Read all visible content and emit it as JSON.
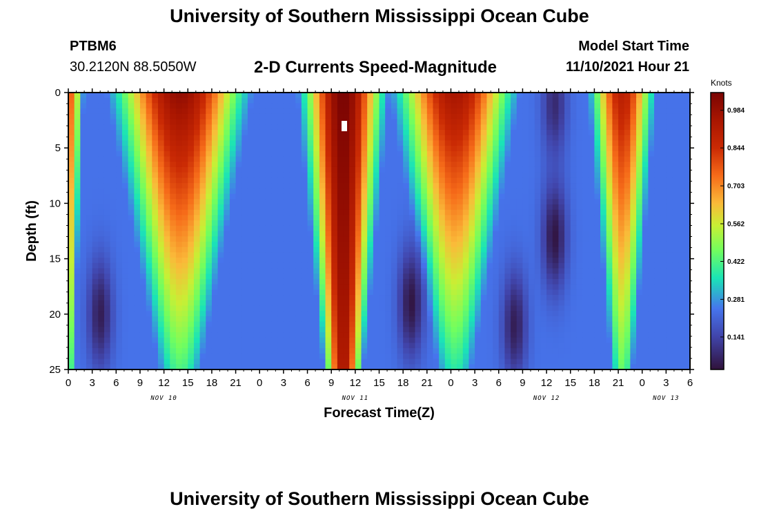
{
  "header": {
    "title": "University of Southern Mississippi Ocean Cube",
    "station_id": "PTBM6",
    "coordinates": "30.2120N  88.5050W",
    "subtitle": "2-D Currents Speed-Magnitude",
    "model_start_label": "Model Start Time",
    "model_start_value": "11/10/2021 Hour 21"
  },
  "footer": {
    "title": "University of Southern Mississippi Ocean Cube"
  },
  "chart_data": {
    "type": "heatmap",
    "title": "2-D Currents Speed-Magnitude",
    "xlabel": "Forecast Time(Z)",
    "ylabel": "Depth (ft)",
    "x_units": "hours from Nov 10 00Z",
    "xlim": [
      0,
      78
    ],
    "ylim": [
      0,
      25
    ],
    "x_ticks": [
      {
        "h": 0,
        "label": "0"
      },
      {
        "h": 3,
        "label": "3"
      },
      {
        "h": 6,
        "label": "6"
      },
      {
        "h": 9,
        "label": "9"
      },
      {
        "h": 12,
        "label": "12"
      },
      {
        "h": 15,
        "label": "15"
      },
      {
        "h": 18,
        "label": "18"
      },
      {
        "h": 21,
        "label": "21"
      },
      {
        "h": 24,
        "label": "0"
      },
      {
        "h": 27,
        "label": "3"
      },
      {
        "h": 30,
        "label": "6"
      },
      {
        "h": 33,
        "label": "9"
      },
      {
        "h": 36,
        "label": "12"
      },
      {
        "h": 39,
        "label": "15"
      },
      {
        "h": 42,
        "label": "18"
      },
      {
        "h": 45,
        "label": "21"
      },
      {
        "h": 48,
        "label": "0"
      },
      {
        "h": 51,
        "label": "3"
      },
      {
        "h": 54,
        "label": "6"
      },
      {
        "h": 57,
        "label": "9"
      },
      {
        "h": 60,
        "label": "12"
      },
      {
        "h": 63,
        "label": "15"
      },
      {
        "h": 66,
        "label": "18"
      },
      {
        "h": 69,
        "label": "21"
      },
      {
        "h": 72,
        "label": "0"
      },
      {
        "h": 75,
        "label": "3"
      },
      {
        "h": 78,
        "label": "6"
      }
    ],
    "date_labels": [
      {
        "h": 12,
        "label": "NOV 10"
      },
      {
        "h": 36,
        "label": "NOV 11"
      },
      {
        "h": 60,
        "label": "NOV 12"
      },
      {
        "h": 75,
        "label": "NOV 13"
      }
    ],
    "y_ticks": [
      0,
      5,
      10,
      15,
      20,
      25
    ],
    "colorbar": {
      "label": "Knots",
      "ticks": [
        0.141,
        0.281,
        0.422,
        0.562,
        0.703,
        0.844,
        0.984
      ],
      "range": [
        0.02,
        1.05
      ]
    },
    "speed_peaks": [
      {
        "hour": 0,
        "top": 0.78,
        "bottom": 0.5,
        "width": 1.3
      },
      {
        "hour": 14,
        "top": 1.0,
        "bottom": 0.42,
        "width": 5.5
      },
      {
        "hour": 34.5,
        "top": 1.05,
        "bottom": 0.95,
        "width": 3.4
      },
      {
        "hour": 48.5,
        "top": 0.95,
        "bottom": 0.38,
        "width": 5.0
      },
      {
        "hour": 69.5,
        "top": 0.9,
        "bottom": 0.45,
        "width": 2.7
      }
    ],
    "speed_minima": [
      {
        "hour": 4,
        "depth": 20,
        "value": 0.05
      },
      {
        "hour": 43,
        "depth": 19,
        "value": 0.03
      },
      {
        "hour": 56,
        "depth": 21,
        "value": 0.05
      },
      {
        "hour": 61,
        "depth": 13,
        "value": 0.03
      },
      {
        "hour": 61,
        "depth": 1,
        "value": 0.08
      }
    ]
  }
}
